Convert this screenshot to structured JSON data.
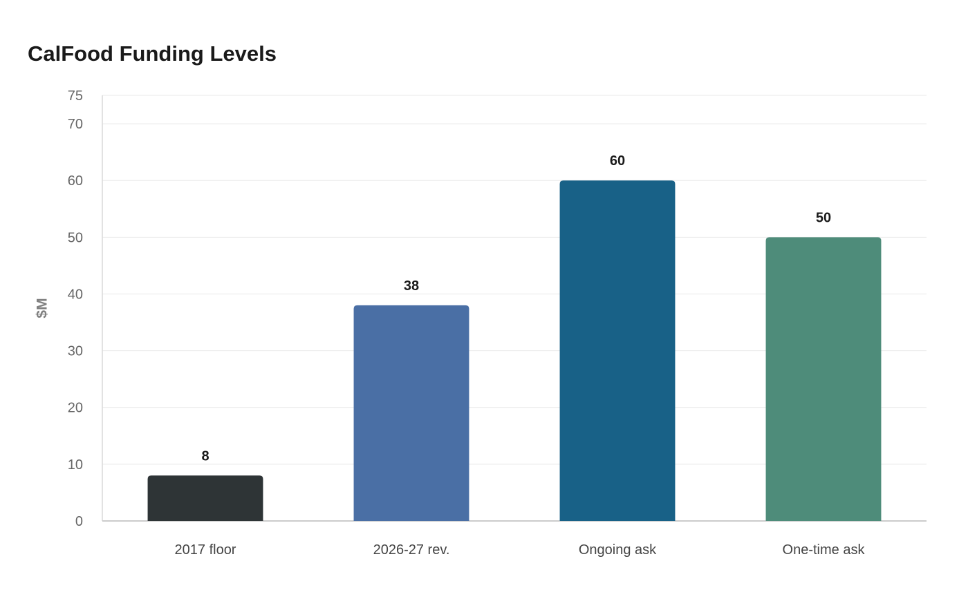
{
  "chart_data": {
    "type": "bar",
    "title": "CalFood Funding Levels",
    "xlabel": "",
    "ylabel": "$M",
    "categories": [
      "2017 floor",
      "2026-27 rev.",
      "Ongoing ask",
      "One-time ask"
    ],
    "values": [
      8,
      38,
      60,
      50
    ],
    "colors": [
      "#2e3436",
      "#4a6fa5",
      "#186187",
      "#4e8c7a"
    ],
    "ylim": [
      0,
      75
    ],
    "yticks": [
      0,
      10,
      20,
      30,
      40,
      50,
      60,
      70,
      75
    ],
    "grid": true,
    "legend": "none",
    "data_labels": true
  }
}
